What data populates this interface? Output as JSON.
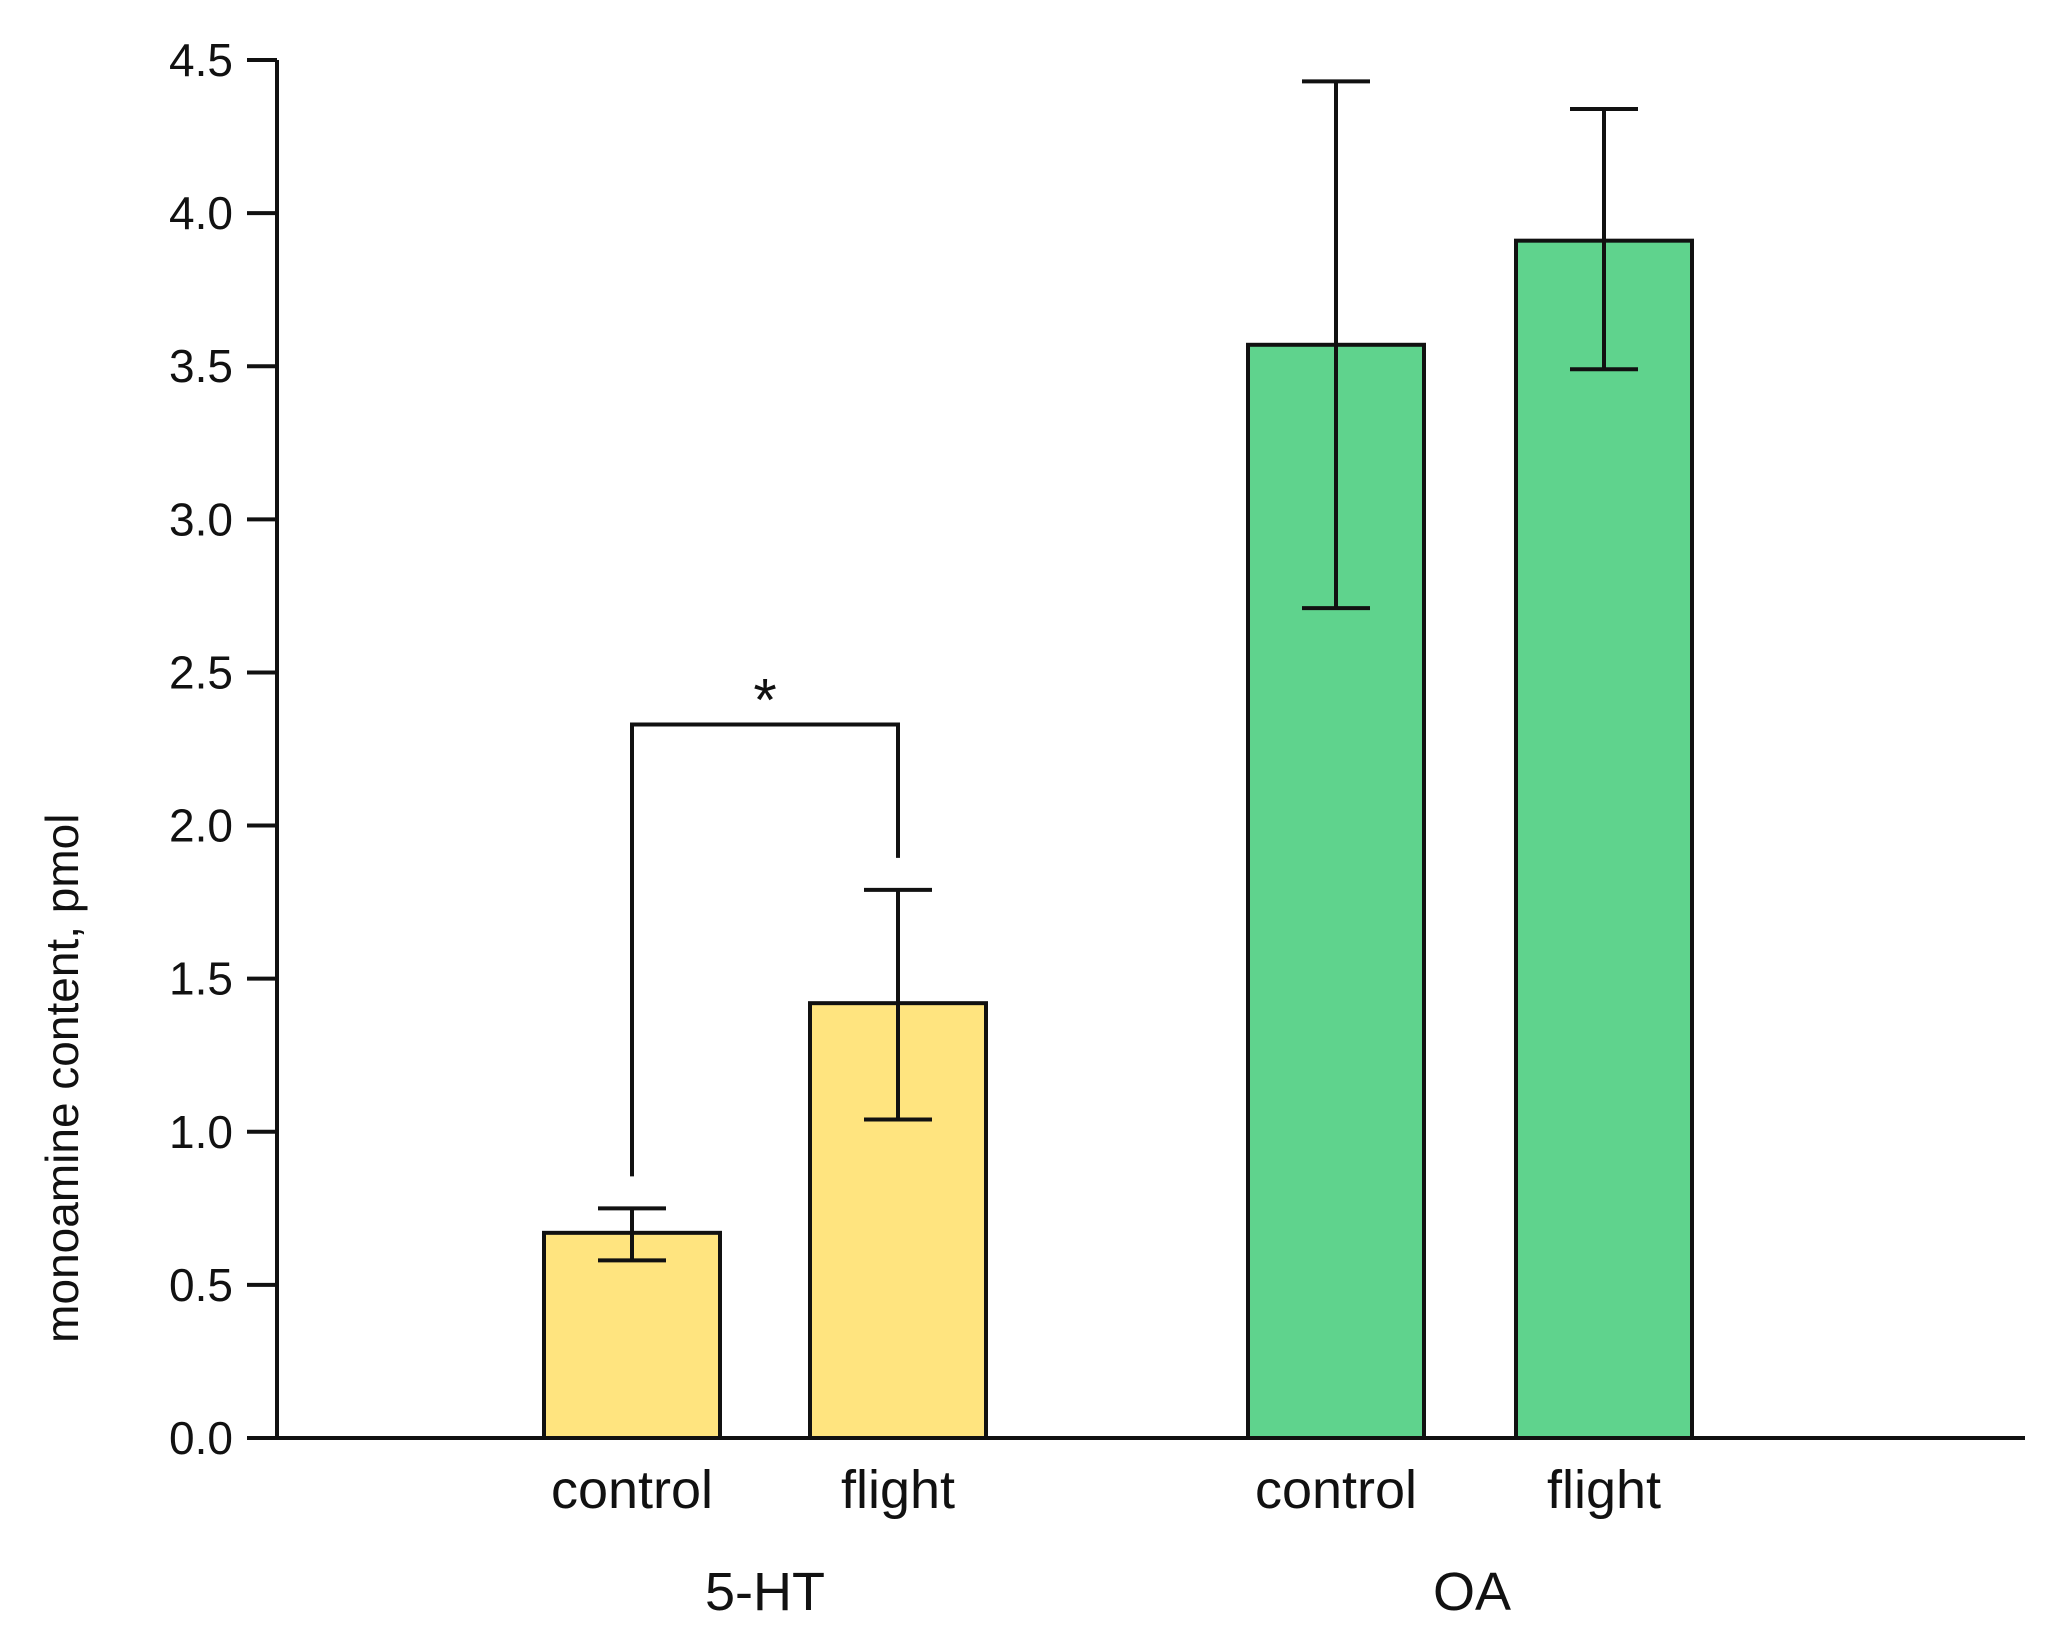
{
  "chart_data": {
    "type": "bar",
    "title": "",
    "xlabel": "",
    "ylabel": "monoamine content, pmol",
    "ylim": [
      0,
      4.5
    ],
    "yticks": [
      "0.0",
      "0.5",
      "1.0",
      "1.5",
      "2.0",
      "2.5",
      "3.0",
      "3.5",
      "4.0",
      "4.5"
    ],
    "grid": false,
    "groups": [
      {
        "name": "5-HT",
        "color": "#ffe47f",
        "bars": [
          {
            "label": "control",
            "value": 0.67,
            "err_low": 0.58,
            "err_high": 0.75
          },
          {
            "label": "flight",
            "value": 1.42,
            "err_low": 1.04,
            "err_high": 1.79
          }
        ]
      },
      {
        "name": "OA",
        "color": "#5fd38d",
        "bars": [
          {
            "label": "control",
            "value": 3.57,
            "err_low": 2.71,
            "err_high": 4.43
          },
          {
            "label": "flight",
            "value": 3.91,
            "err_low": 3.49,
            "err_high": 4.34
          }
        ]
      }
    ],
    "annotations": [
      {
        "text": "*",
        "type": "significance-bracket",
        "between": [
          "5-HT control",
          "5-HT flight"
        ],
        "level": 2.33
      }
    ]
  }
}
